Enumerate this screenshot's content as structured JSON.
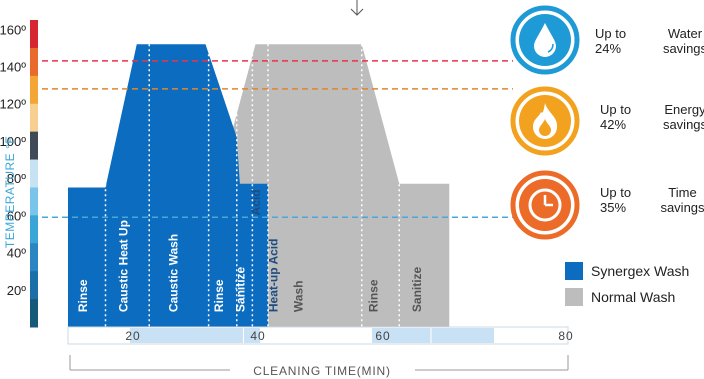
{
  "chart_data": {
    "type": "area",
    "ylabel": "TEMPERATURE °F",
    "xlabel": "CLEANING TIME(MIN)",
    "y_ticks": [
      "160º",
      "140º",
      "120º",
      "100º",
      "80º",
      "60º",
      "40º",
      "20º"
    ],
    "y_tick_values": [
      160,
      140,
      120,
      100,
      80,
      60,
      40,
      20
    ],
    "x_ticks": [
      "20",
      "40",
      "60",
      "80"
    ],
    "x_tick_values": [
      20,
      40,
      60,
      80
    ],
    "xlim": [
      0,
      80
    ],
    "ylim": [
      0,
      165
    ],
    "series": [
      {
        "name": "Synergex Wash",
        "color": "#0b6cc0",
        "points": [
          [
            0,
            75
          ],
          [
            6,
            75
          ],
          [
            11,
            152
          ],
          [
            22,
            152
          ],
          [
            27,
            102
          ],
          [
            27.5,
            77
          ],
          [
            32,
            77
          ],
          [
            32,
            0
          ]
        ],
        "phases": [
          "Rinse",
          "Caustic Heat Up",
          "Caustic Wash",
          "Rinse",
          "Sanitize",
          "Acid"
        ]
      },
      {
        "name": "Normal Wash",
        "color": "#bdbdbd",
        "points": [
          [
            26,
            102
          ],
          [
            30,
            152
          ],
          [
            47,
            152
          ],
          [
            53,
            77
          ],
          [
            61,
            77
          ],
          [
            61,
            0
          ]
        ],
        "phases": [
          "Heat-up Acid",
          "Wash",
          "Rinse",
          "Sanitize"
        ]
      }
    ],
    "reference_lines": [
      {
        "y": 143,
        "color": "#e8344a"
      },
      {
        "y": 128,
        "color": "#e0862a"
      },
      {
        "y": 59,
        "color": "#4aa8d8"
      }
    ],
    "temperature_scale_colors": [
      "#d62631",
      "#e86a2d",
      "#f4a536",
      "#f7cf8e",
      "#404a57",
      "#c6e2f3",
      "#78c4ea",
      "#3aa6d7",
      "#2a86c2",
      "#1b6fa8",
      "#165a7a"
    ]
  },
  "savings": [
    {
      "upto": "Up to",
      "pct": "24%",
      "kind1": "Water",
      "kind2": "savings",
      "icon": "water-drop-icon",
      "color": "#1e9ad6"
    },
    {
      "upto": "Up to",
      "pct": "42%",
      "kind1": "Energy",
      "kind2": "savings",
      "icon": "flame-icon",
      "color": "#f3a21f"
    },
    {
      "upto": "Up to",
      "pct": "35%",
      "kind1": "Time",
      "kind2": "savings",
      "icon": "clock-icon",
      "color": "#ec6b28"
    }
  ],
  "legend": [
    {
      "label": "Synergex Wash",
      "color": "#0b6cc0"
    },
    {
      "label": "Normal Wash",
      "color": "#bdbdbd"
    }
  ]
}
